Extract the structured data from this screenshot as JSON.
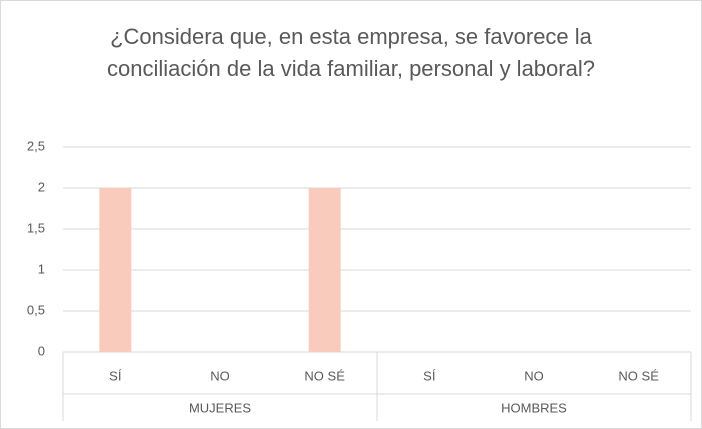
{
  "chart_data": {
    "type": "bar",
    "title": "¿Considera que, en esta empresa, se favorece la conciliación de la vida familiar, personal y laboral?",
    "categories": [
      "SÍ",
      "NO",
      "NO SÉ",
      "SÍ",
      "NO",
      "NO SÉ"
    ],
    "category_groups": [
      "MUJERES",
      "HOMBRES"
    ],
    "values": [
      2,
      0,
      2,
      0,
      0,
      0
    ],
    "color": "#f8cbbd",
    "ylim": [
      0,
      2.5
    ],
    "yticks": [
      0,
      {
        "value": 0.5,
        "label": "0,5"
      },
      1,
      {
        "value": 1.5,
        "label": "1,5"
      },
      2,
      {
        "value": 2.5,
        "label": "2,5"
      }
    ],
    "grid": true
  }
}
